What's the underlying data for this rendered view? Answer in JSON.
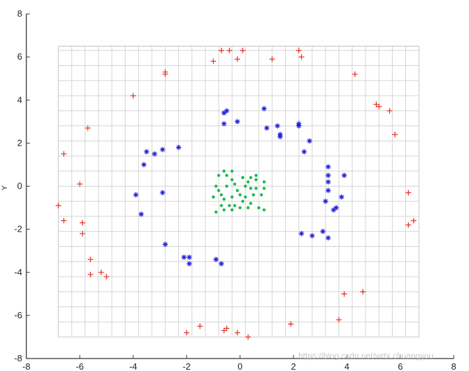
{
  "chart_data": {
    "type": "scatter",
    "title": "",
    "xlabel": "",
    "ylabel": "Y",
    "xlim": [
      -8,
      8
    ],
    "ylim": [
      -8,
      8
    ],
    "xticks": [
      -8,
      -6,
      -4,
      -2,
      0,
      2,
      4,
      6,
      8
    ],
    "yticks": [
      -8,
      -6,
      -4,
      -2,
      0,
      2,
      4,
      6,
      8
    ],
    "grid": true,
    "grid_extent": {
      "x": [
        -6.8,
        6.7
      ],
      "y": [
        -7,
        6.5
      ]
    },
    "grid_step": {
      "x": 0.5,
      "y": 0.7
    },
    "watermark": "https://blog.csdn.net/wrtx.chuangyou",
    "series": [
      {
        "marker": "plus",
        "color": "#e8392b",
        "points": [
          [
            -0.7,
            6.3
          ],
          [
            -0.4,
            6.3
          ],
          [
            0.1,
            6.3
          ],
          [
            -0.1,
            5.9
          ],
          [
            -1.0,
            5.8
          ],
          [
            1.2,
            5.9
          ],
          [
            2.2,
            6.3
          ],
          [
            2.3,
            6.0
          ],
          [
            4.3,
            5.2
          ],
          [
            -2.8,
            5.3
          ],
          [
            -2.8,
            5.2
          ],
          [
            -4.0,
            4.2
          ],
          [
            5.1,
            3.8
          ],
          [
            5.2,
            3.7
          ],
          [
            5.6,
            3.5
          ],
          [
            5.8,
            2.4
          ],
          [
            -5.7,
            2.7
          ],
          [
            -6.6,
            1.5
          ],
          [
            -6.8,
            -0.9
          ],
          [
            -6.0,
            0.1
          ],
          [
            6.3,
            -0.3
          ],
          [
            -6.6,
            -1.6
          ],
          [
            -5.9,
            -1.7
          ],
          [
            -5.9,
            -2.2
          ],
          [
            6.3,
            -1.8
          ],
          [
            6.5,
            -1.6
          ],
          [
            -5.6,
            -3.4
          ],
          [
            -5.6,
            -4.1
          ],
          [
            -5.2,
            -4.0
          ],
          [
            -5.0,
            -4.2
          ],
          [
            4.6,
            -4.9
          ],
          [
            3.9,
            -5.0
          ],
          [
            3.7,
            -6.2
          ],
          [
            -1.5,
            -6.5
          ],
          [
            -2.0,
            -6.8
          ],
          [
            -0.5,
            -6.6
          ],
          [
            -0.6,
            -6.7
          ],
          [
            -0.1,
            -6.8
          ],
          [
            0.3,
            -7.0
          ],
          [
            1.9,
            -6.4
          ]
        ]
      },
      {
        "marker": "asterisk",
        "color": "#2424d6",
        "points": [
          [
            -0.6,
            3.4
          ],
          [
            -0.5,
            3.5
          ],
          [
            -0.6,
            2.9
          ],
          [
            -0.1,
            3.0
          ],
          [
            0.9,
            3.6
          ],
          [
            1.0,
            2.7
          ],
          [
            1.4,
            2.8
          ],
          [
            1.5,
            2.4
          ],
          [
            1.5,
            2.3
          ],
          [
            2.2,
            2.9
          ],
          [
            2.2,
            2.8
          ],
          [
            2.6,
            2.1
          ],
          [
            -2.3,
            1.8
          ],
          [
            -2.9,
            1.7
          ],
          [
            -3.2,
            1.5
          ],
          [
            -3.5,
            1.6
          ],
          [
            -3.6,
            1.0
          ],
          [
            2.4,
            1.6
          ],
          [
            3.3,
            0.9
          ],
          [
            3.3,
            0.5
          ],
          [
            3.3,
            0.2
          ],
          [
            3.9,
            0.5
          ],
          [
            3.3,
            -0.2
          ],
          [
            -2.9,
            -0.3
          ],
          [
            -3.9,
            -0.4
          ],
          [
            3.8,
            -0.5
          ],
          [
            3.2,
            -0.7
          ],
          [
            3.6,
            -1.0
          ],
          [
            3.5,
            -1.1
          ],
          [
            -3.7,
            -1.3
          ],
          [
            3.1,
            -2.1
          ],
          [
            2.3,
            -2.2
          ],
          [
            2.7,
            -2.3
          ],
          [
            3.3,
            -2.4
          ],
          [
            -2.8,
            -2.7
          ],
          [
            -2.1,
            -3.3
          ],
          [
            -1.9,
            -3.3
          ],
          [
            -1.9,
            -3.6
          ],
          [
            -0.9,
            -3.4
          ],
          [
            -0.7,
            -3.6
          ]
        ]
      },
      {
        "marker": "dot",
        "color": "#19b84e",
        "points": [
          [
            -0.6,
            0.7
          ],
          [
            -0.3,
            0.7
          ],
          [
            -0.5,
            0.5
          ],
          [
            -0.8,
            0.5
          ],
          [
            -0.3,
            0.3
          ],
          [
            -0.2,
            0.1
          ],
          [
            0.1,
            0.4
          ],
          [
            0.4,
            0.4
          ],
          [
            0.6,
            0.5
          ],
          [
            0.3,
            0.2
          ],
          [
            0.6,
            0.3
          ],
          [
            0.9,
            0.2
          ],
          [
            0.2,
            0.0
          ],
          [
            0.4,
            -0.1
          ],
          [
            0.6,
            -0.1
          ],
          [
            0.9,
            -0.1
          ],
          [
            -0.5,
            0.0
          ],
          [
            -0.8,
            -0.2
          ],
          [
            -0.9,
            0.0
          ],
          [
            -0.7,
            -0.4
          ],
          [
            -1.0,
            -0.5
          ],
          [
            -0.6,
            -0.6
          ],
          [
            -0.3,
            -0.5
          ],
          [
            0.0,
            -0.4
          ],
          [
            0.2,
            -0.5
          ],
          [
            0.5,
            -0.4
          ],
          [
            0.8,
            -0.4
          ],
          [
            0.1,
            -0.7
          ],
          [
            0.4,
            -0.8
          ],
          [
            0.7,
            -1.0
          ],
          [
            0.9,
            -1.1
          ],
          [
            -0.2,
            -0.9
          ],
          [
            -0.4,
            -0.9
          ],
          [
            -0.6,
            -1.1
          ],
          [
            -0.9,
            -1.2
          ],
          [
            -0.7,
            -0.9
          ],
          [
            -0.3,
            -1.1
          ],
          [
            0.0,
            -1.0
          ],
          [
            0.3,
            -1.0
          ],
          [
            -0.1,
            -0.2
          ]
        ]
      }
    ]
  }
}
